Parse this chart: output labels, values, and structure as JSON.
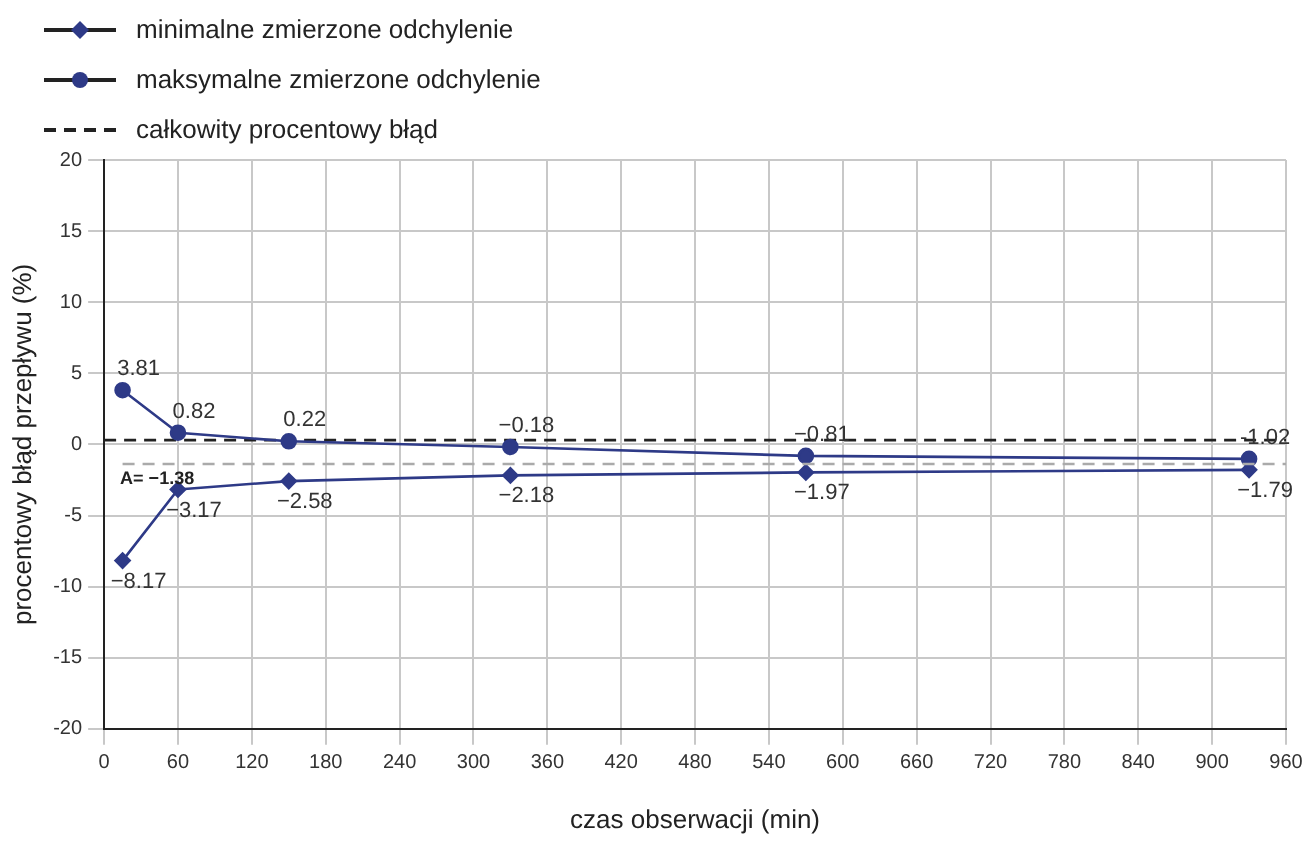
{
  "chart_data": {
    "type": "line",
    "xlabel": "czas obserwacji (min)",
    "ylabel": "procentowy błąd przepływu (%)",
    "x": [
      15,
      60,
      150,
      330,
      570,
      930
    ],
    "series": [
      {
        "name": "minimalne zmierzone odchylenie",
        "color": "#2e3a87",
        "marker": "diamond",
        "values": [
          -8.17,
          -3.17,
          -2.58,
          -2.18,
          -1.97,
          -1.79
        ],
        "value_labels": [
          "−8.17",
          "−3.17",
          "−2.58",
          "−2.18",
          "−1.97",
          "−1.79"
        ]
      },
      {
        "name": "maksymalne zmierzone odchylenie",
        "color": "#2e3a87",
        "marker": "circle",
        "values": [
          3.81,
          0.82,
          0.22,
          -0.18,
          -0.81,
          -1.02
        ],
        "value_labels": [
          "3.81",
          "0.82",
          "0.22",
          "−0.18",
          "−0.81",
          "-1.02"
        ]
      },
      {
        "name": "całkowity procentowy błąd",
        "color": "#222222",
        "marker": "none",
        "line_style": "dashed",
        "x": [
          0,
          960
        ],
        "values": [
          0.3,
          0.3
        ]
      }
    ],
    "ref_lines": [
      {
        "axis": "y",
        "value": -1.38,
        "label": "A= −1.38",
        "color": "#aaaaaa",
        "line_style": "dashed"
      }
    ],
    "xlim": [
      0,
      960
    ],
    "xticks": [
      0,
      60,
      120,
      180,
      240,
      300,
      360,
      420,
      480,
      540,
      600,
      660,
      720,
      780,
      840,
      900,
      960
    ],
    "ylim": [
      -20,
      20
    ],
    "yticks": [
      -20,
      -15,
      -10,
      -5,
      0,
      5,
      10,
      15,
      20
    ],
    "grid": true,
    "legend": "top left"
  }
}
